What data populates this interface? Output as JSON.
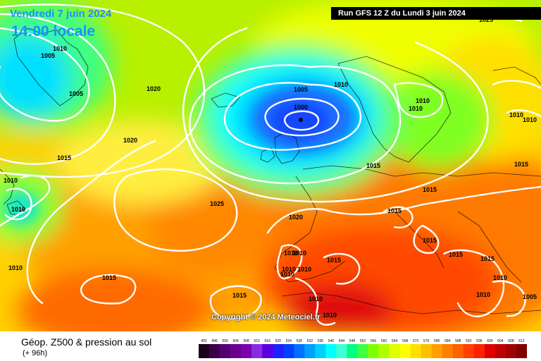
{
  "header": {
    "date_label": "Vendredi 7 juin 2024",
    "time_label": "14:00 locale",
    "run_label": "Run GFS 12 Z du Lundi 3 juin 2024"
  },
  "map": {
    "copyright": "Copyright © 2024 Meteociel.fr",
    "isobar_labels": [
      {
        "text": "1005",
        "pos": [
          68,
          82
        ]
      },
      {
        "text": "1010",
        "pos": [
          85,
          72
        ]
      },
      {
        "text": "1005",
        "pos": [
          108,
          136
        ]
      },
      {
        "text": "1020",
        "pos": [
          218,
          129
        ]
      },
      {
        "text": "1020",
        "pos": [
          185,
          202
        ]
      },
      {
        "text": "1015",
        "pos": [
          91,
          227
        ]
      },
      {
        "text": "1010",
        "pos": [
          15,
          259
        ]
      },
      {
        "text": "1010",
        "pos": [
          26,
          300
        ]
      },
      {
        "text": "1025",
        "pos": [
          308,
          292
        ]
      },
      {
        "text": "1020",
        "pos": [
          420,
          311
        ]
      },
      {
        "text": "1010",
        "pos": [
          22,
          383
        ]
      },
      {
        "text": "1015",
        "pos": [
          155,
          397
        ]
      },
      {
        "text": "1015",
        "pos": [
          340,
          422
        ]
      },
      {
        "text": "1005",
        "pos": [
          427,
          130
        ]
      },
      {
        "text": "1000",
        "pos": [
          427,
          155
        ]
      },
      {
        "text": "1010",
        "pos": [
          484,
          123
        ]
      },
      {
        "text": "1010",
        "pos": [
          600,
          146
        ]
      },
      {
        "text": "1010",
        "pos": [
          590,
          157
        ]
      },
      {
        "text": "1010",
        "pos": [
          733,
          166
        ]
      },
      {
        "text": "1010",
        "pos": [
          752,
          173
        ]
      },
      {
        "text": "1025",
        "pos": [
          690,
          31
        ]
      },
      {
        "text": "1015",
        "pos": [
          530,
          238
        ]
      },
      {
        "text": "1015",
        "pos": [
          740,
          236
        ]
      },
      {
        "text": "1015",
        "pos": [
          610,
          272
        ]
      },
      {
        "text": "1015",
        "pos": [
          560,
          302
        ]
      },
      {
        "text": "1015",
        "pos": [
          610,
          344
        ]
      },
      {
        "text": "1015",
        "pos": [
          647,
          364
        ]
      },
      {
        "text": "1015",
        "pos": [
          692,
          370
        ]
      },
      {
        "text": "1015",
        "pos": [
          474,
          372
        ]
      },
      {
        "text": "1010",
        "pos": [
          413,
          362
        ]
      },
      {
        "text": "1010",
        "pos": [
          425,
          362
        ]
      },
      {
        "text": "1010",
        "pos": [
          410,
          385
        ]
      },
      {
        "text": "1010",
        "pos": [
          432,
          385
        ]
      },
      {
        "text": "1010",
        "pos": [
          408,
          392
        ]
      },
      {
        "text": "1010",
        "pos": [
          448,
          427
        ]
      },
      {
        "text": "1010",
        "pos": [
          468,
          450
        ]
      },
      {
        "text": "1010",
        "pos": [
          686,
          421
        ]
      },
      {
        "text": "1010",
        "pos": [
          710,
          397
        ]
      },
      {
        "text": "1005",
        "pos": [
          752,
          424
        ]
      }
    ]
  },
  "legend": {
    "title": "Géop. Z500 & pression au sol",
    "subtitle": "(+ 96h)",
    "ticks": [
      "492",
      "496",
      "500",
      "504",
      "508",
      "512",
      "516",
      "520",
      "524",
      "528",
      "532",
      "536",
      "540",
      "544",
      "548",
      "552",
      "556",
      "560",
      "564",
      "568",
      "572",
      "576",
      "580",
      "584",
      "588",
      "592",
      "596",
      "600",
      "604",
      "608",
      "612"
    ],
    "colors": [
      "#1a001a",
      "#3a004a",
      "#550070",
      "#6a0090",
      "#7c00b0",
      "#8a2be2",
      "#5a00e0",
      "#2020ff",
      "#0040ff",
      "#0070ff",
      "#00a0ff",
      "#00d0ff",
      "#00ffff",
      "#40ffd0",
      "#00ff80",
      "#40ff40",
      "#80ff00",
      "#b0ff00",
      "#e0ff00",
      "#ffff00",
      "#ffe000",
      "#ffc000",
      "#ffa000",
      "#ff8000",
      "#ff6000",
      "#ff4000",
      "#ff2000",
      "#e00000",
      "#c00000",
      "#a00000",
      "#800000"
    ]
  }
}
